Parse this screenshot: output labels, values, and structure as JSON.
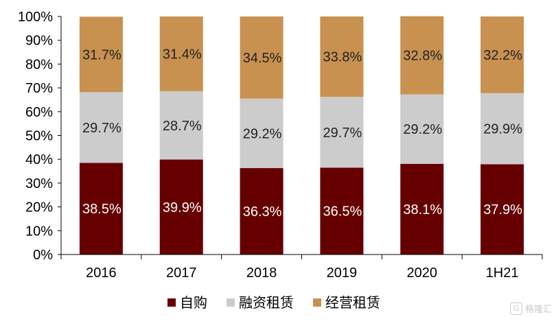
{
  "chart_data": {
    "type": "bar",
    "stacked": true,
    "categories": [
      "2016",
      "2017",
      "2018",
      "2019",
      "2020",
      "1H21"
    ],
    "series": [
      {
        "name": "自购",
        "color": "#660000",
        "values": [
          38.5,
          39.9,
          36.3,
          36.5,
          38.1,
          37.9
        ]
      },
      {
        "name": "融资租赁",
        "color": "#cccccc",
        "values": [
          29.7,
          28.7,
          29.2,
          29.7,
          29.2,
          29.9
        ]
      },
      {
        "name": "经营租赁",
        "color": "#c8914f",
        "values": [
          31.7,
          31.4,
          34.5,
          33.8,
          32.8,
          32.2
        ]
      }
    ],
    "ylim": [
      0,
      100
    ],
    "yticks": [
      "0%",
      "10%",
      "20%",
      "30%",
      "40%",
      "50%",
      "60%",
      "70%",
      "80%",
      "90%",
      "100%"
    ],
    "data_labels": [
      [
        "38.5%",
        "39.9%",
        "36.3%",
        "36.5%",
        "38.1%",
        "37.9%"
      ],
      [
        "29.7%",
        "28.7%",
        "29.2%",
        "29.7%",
        "29.2%",
        "29.9%"
      ],
      [
        "31.7%",
        "31.4%",
        "34.5%",
        "33.8%",
        "32.8%",
        "32.2%"
      ]
    ],
    "label_colors": [
      "#ffffff",
      "#222222",
      "#222222"
    ],
    "legend_position": "bottom",
    "grid": false
  },
  "watermark": {
    "icon": "G",
    "text": "格隆汇"
  }
}
